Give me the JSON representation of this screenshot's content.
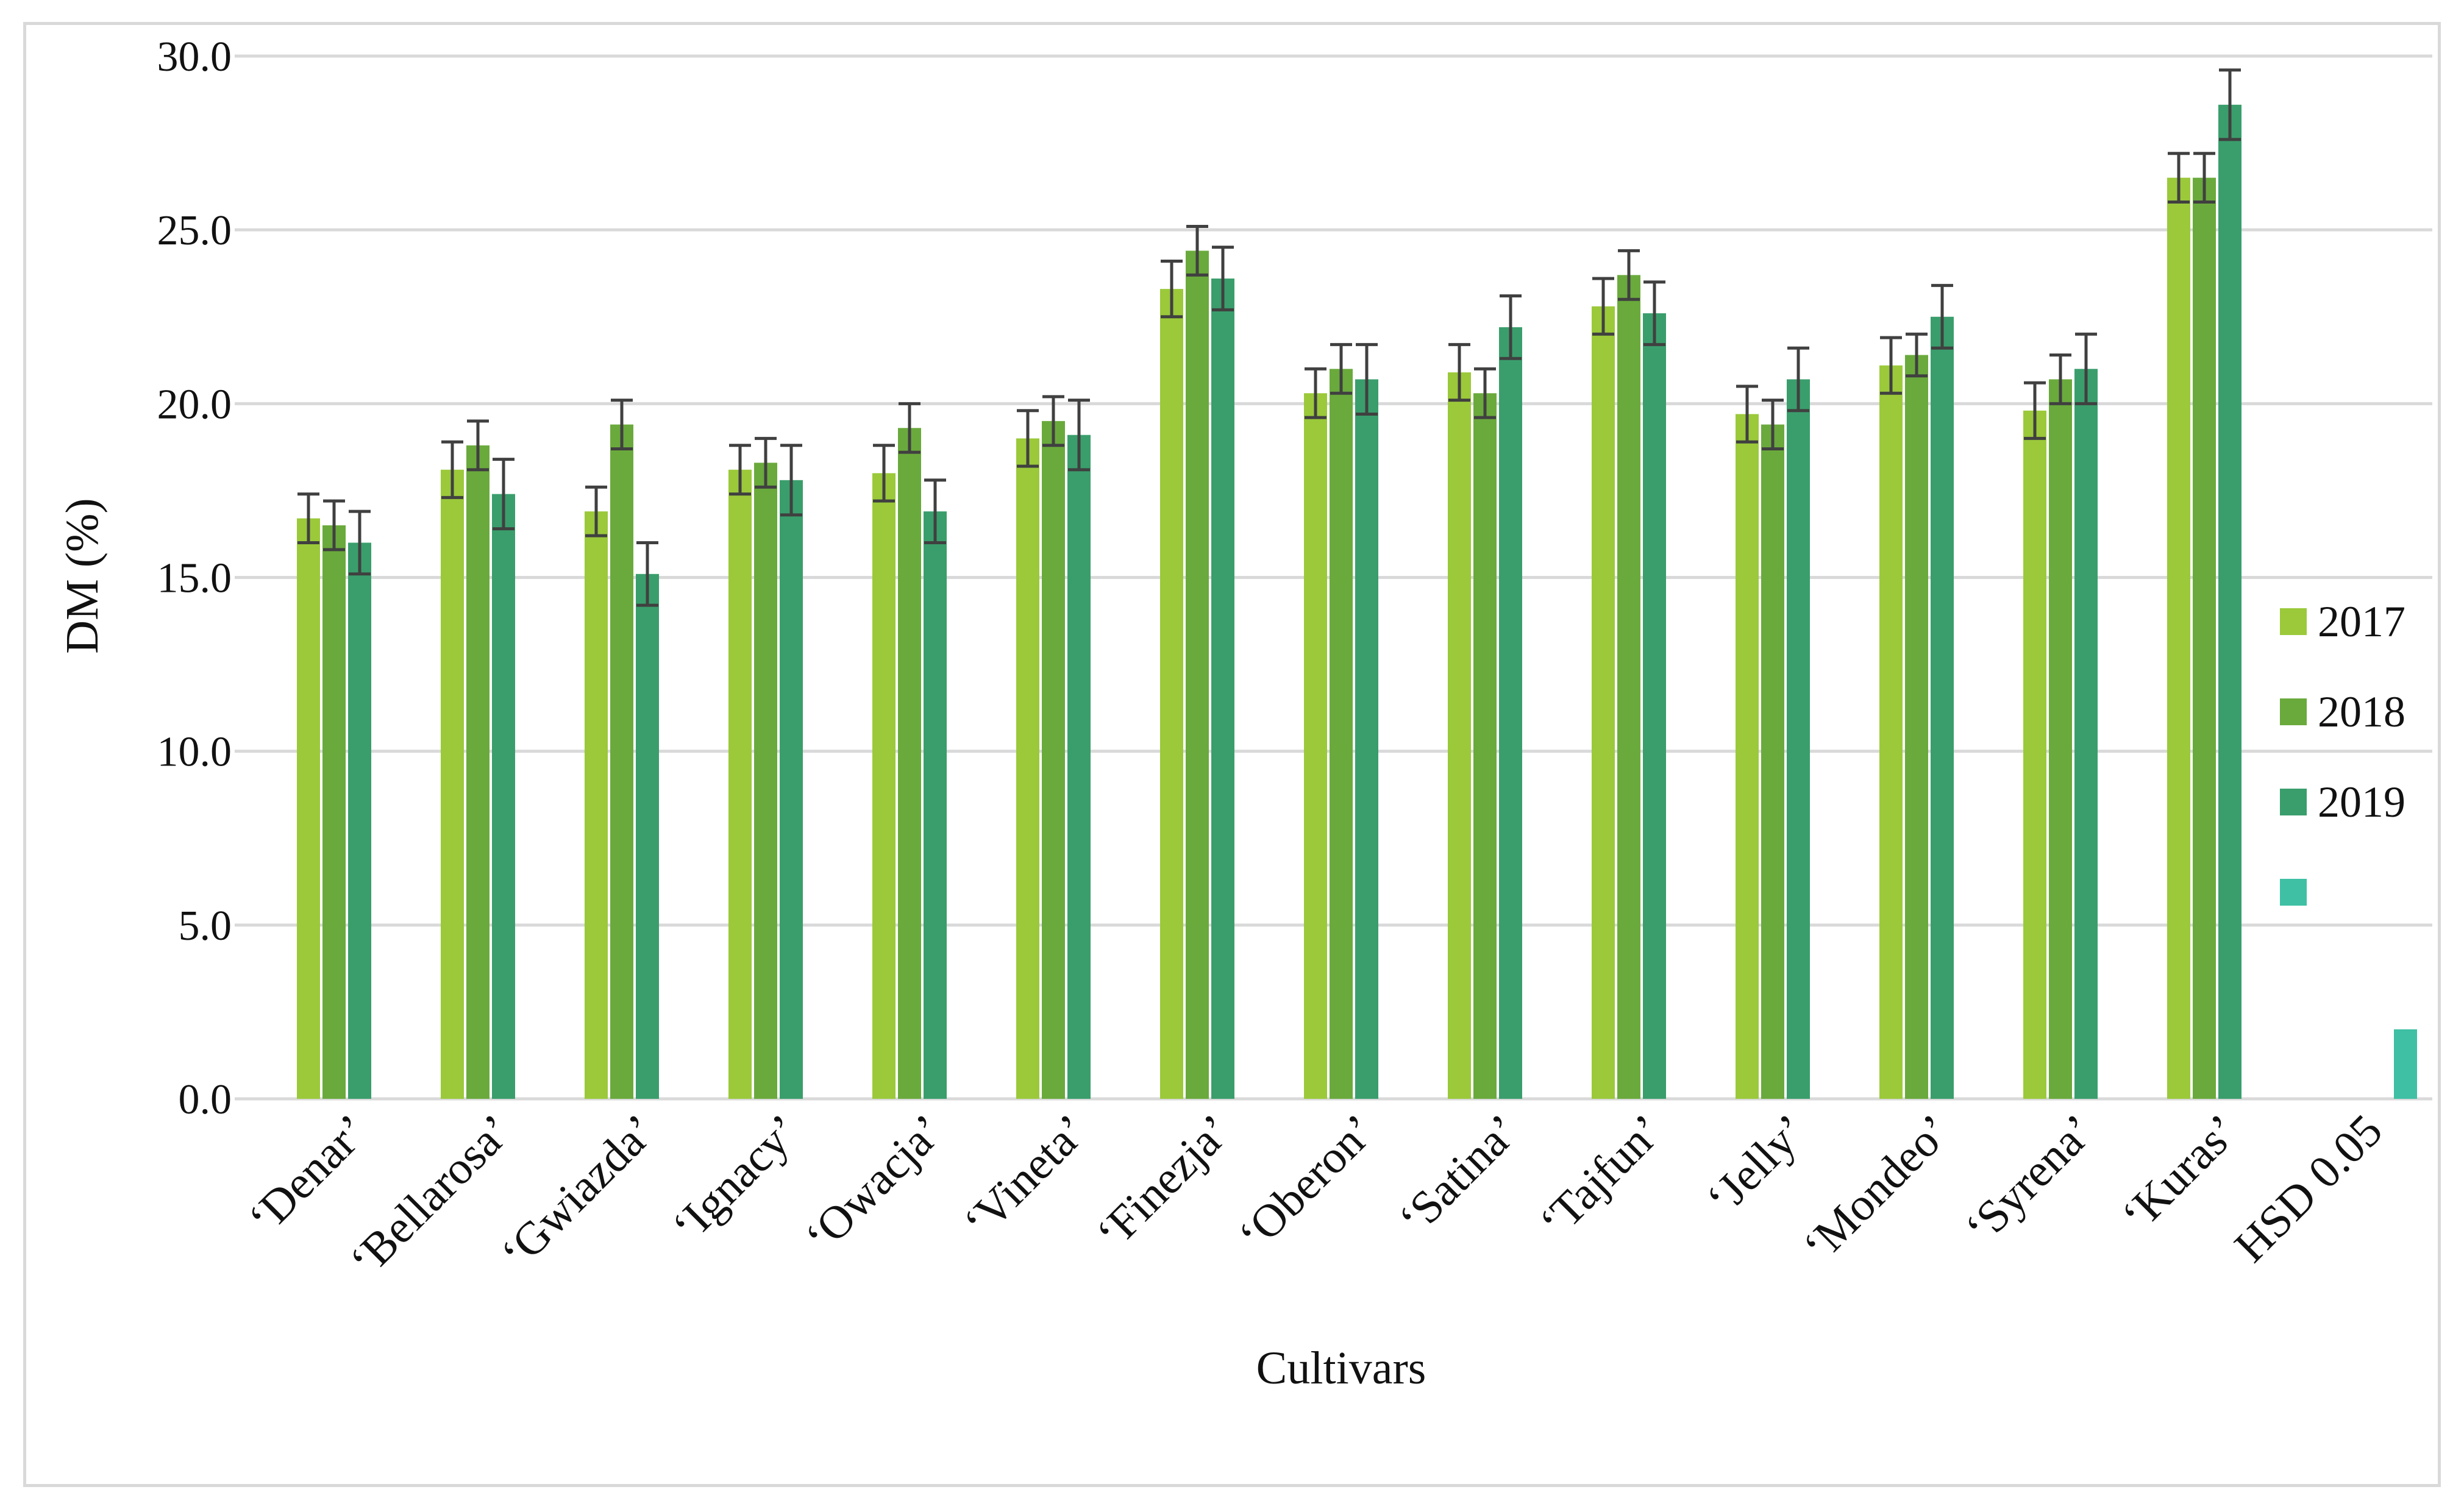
{
  "chart_data": {
    "type": "bar",
    "xlabel": "Cultivars",
    "ylabel": "DM (%)",
    "ylim": [
      0,
      30
    ],
    "yticks": [
      "0.0",
      "5.0",
      "10.0",
      "15.0",
      "20.0",
      "25.0",
      "30.0"
    ],
    "grid": true,
    "legend_position": "right",
    "categories": [
      "‘Denar’",
      "‘Bellarosa’",
      "‘Gwiazda’",
      "‘Ignacy’",
      "‘Owacja’",
      "‘Vineta’",
      "‘Finezja’",
      "‘Oberon’",
      "‘Satina’",
      "‘Tajfun’",
      "‘Jelly’",
      "‘Mondeo’",
      "‘Syrena’",
      "‘Kuras’",
      "HSD 0.05"
    ],
    "series": [
      {
        "name": "2017",
        "color": "#9bc93a",
        "values": [
          16.7,
          18.1,
          16.9,
          18.1,
          18.0,
          19.0,
          23.3,
          20.3,
          20.9,
          22.8,
          19.7,
          21.1,
          19.8,
          26.5,
          null
        ],
        "errors": [
          0.7,
          0.8,
          0.7,
          0.7,
          0.8,
          0.8,
          0.8,
          0.7,
          0.8,
          0.8,
          0.8,
          0.8,
          0.8,
          0.7,
          null
        ]
      },
      {
        "name": "2018",
        "color": "#6aaa3c",
        "values": [
          16.5,
          18.8,
          19.4,
          18.3,
          19.3,
          19.5,
          24.4,
          21.0,
          20.3,
          23.7,
          19.4,
          21.4,
          20.7,
          26.5,
          null
        ],
        "errors": [
          0.7,
          0.7,
          0.7,
          0.7,
          0.7,
          0.7,
          0.7,
          0.7,
          0.7,
          0.7,
          0.7,
          0.6,
          0.7,
          0.7,
          null
        ]
      },
      {
        "name": "2019",
        "color": "#3a9e6c",
        "values": [
          16.0,
          17.4,
          15.1,
          17.8,
          16.9,
          19.1,
          23.6,
          20.7,
          22.2,
          22.6,
          20.7,
          22.5,
          21.0,
          28.6,
          null
        ],
        "errors": [
          0.9,
          1.0,
          0.9,
          1.0,
          0.9,
          1.0,
          0.9,
          1.0,
          0.9,
          0.9,
          0.9,
          0.9,
          1.0,
          1.0,
          null
        ]
      },
      {
        "name": "",
        "color": "#3fc0a4",
        "values": [
          null,
          null,
          null,
          null,
          null,
          null,
          null,
          null,
          null,
          null,
          null,
          null,
          null,
          null,
          2.0
        ]
      }
    ]
  }
}
